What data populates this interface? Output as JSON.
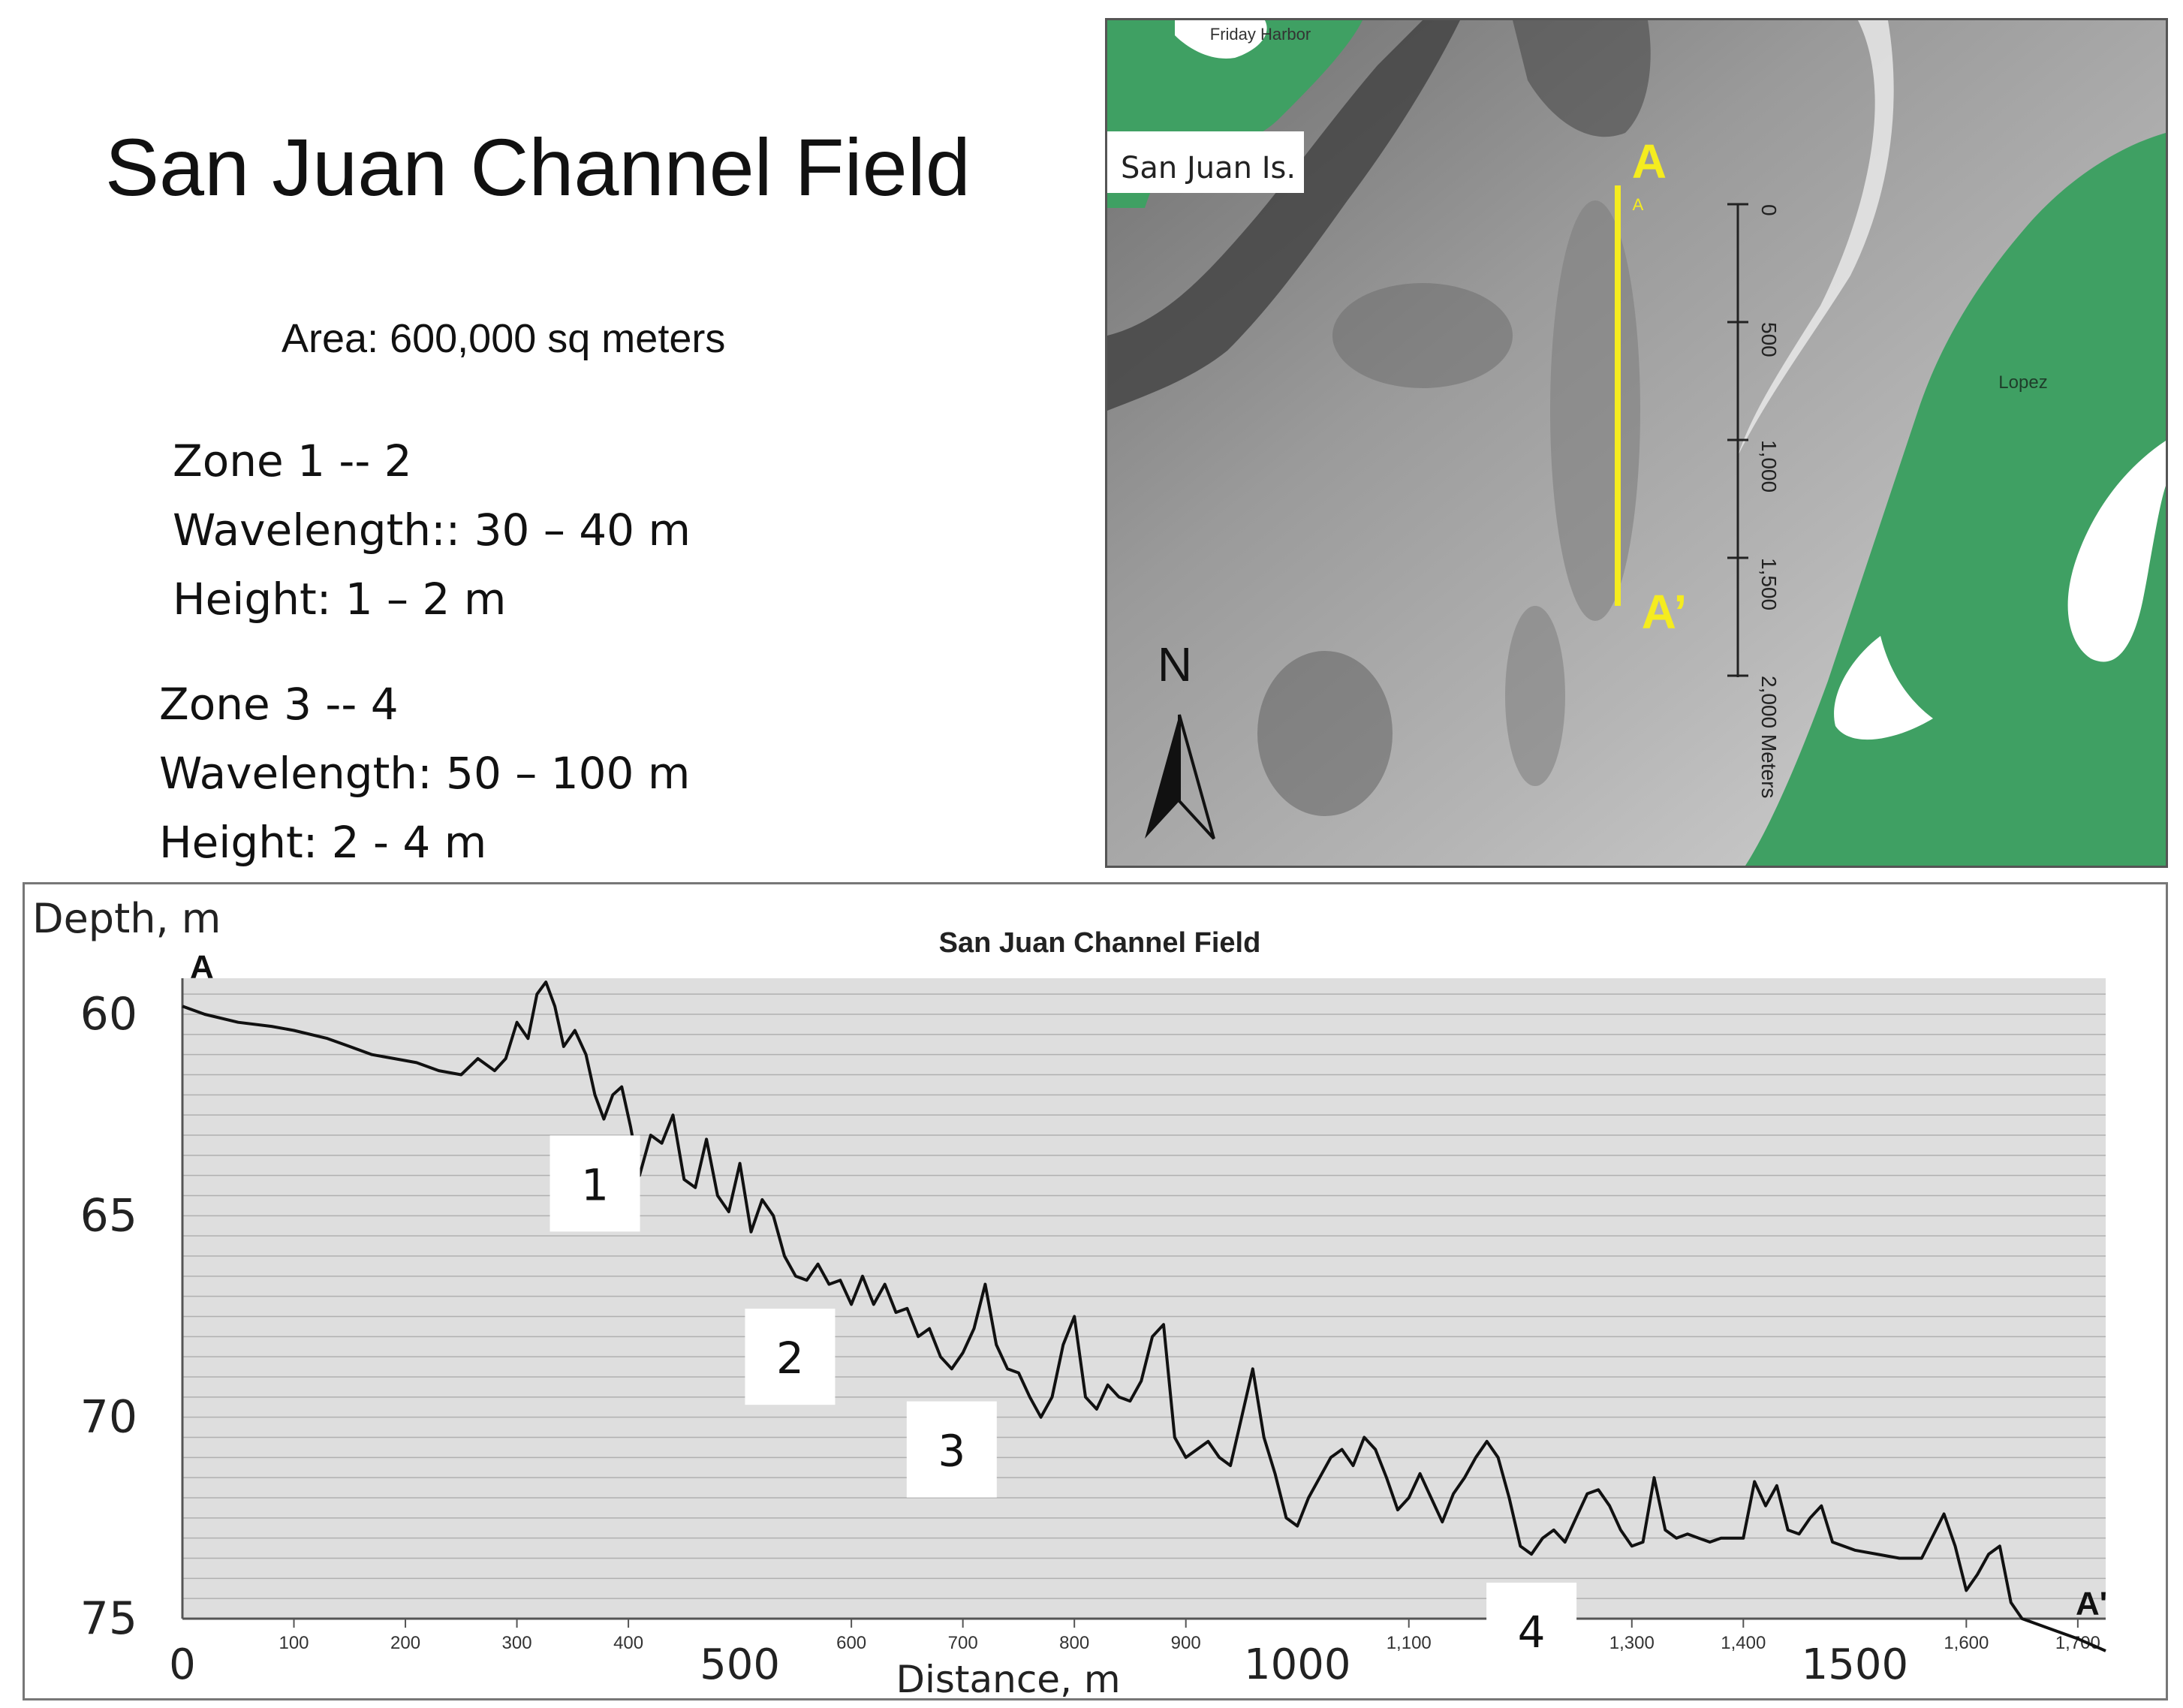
{
  "slide": {
    "title": "San Juan Channel Field",
    "area": "Area: 600,000 sq meters",
    "zone12": [
      "Zone 1 -- 2",
      "Wavelength:: 30 – 40 m",
      "Height: 1 – 2 m"
    ],
    "zone34": [
      "Zone 3 -- 4",
      "Wavelength: 50 – 100 m",
      "Height: 2 - 4 m"
    ]
  },
  "map": {
    "label_san_juan": "San Juan Is.",
    "label_friday": "Friday Harbor",
    "label_lopez": "Lopez",
    "label_a_top": "A",
    "label_a_small": "A",
    "label_a_prime": "A’",
    "north": "N",
    "scale_ticks": [
      "0",
      "500",
      "1,000",
      "1,500",
      "2,000 Meters"
    ],
    "colors": {
      "land": "#3fa063",
      "transect": "#f5ec1f"
    }
  },
  "chart_data": {
    "type": "line",
    "title": "San Juan Channel Field",
    "xlabel": "Distance, m",
    "ylabel": "Depth, m",
    "xlim": [
      0,
      1725
    ],
    "ylim": [
      60,
      75
    ],
    "y_inverted": true,
    "grid": true,
    "y_ticks": [
      60,
      65,
      70,
      75
    ],
    "x_ticks_small": [
      100,
      200,
      300,
      400,
      600,
      700,
      800,
      900,
      1100,
      1200,
      1300,
      1400,
      1600,
      1700
    ],
    "x_ticks_small_labels": [
      "100",
      "200",
      "300",
      "400",
      "600",
      "700",
      "800",
      "900",
      "1,100",
      "1,200",
      "1,300",
      "1,400",
      "1,600",
      "1,700"
    ],
    "x_ticks_large": [
      0,
      500,
      1000,
      1500
    ],
    "x_ticks_large_labels": [
      "0",
      "500",
      "1000",
      "1500"
    ],
    "endpoint_labels": [
      {
        "text": "A",
        "x": 0,
        "y": 59.1
      },
      {
        "text": "A'",
        "x": 1725,
        "y": 74.9
      }
    ],
    "zone_labels": [
      {
        "text": "1",
        "x": 370,
        "y": 64.2
      },
      {
        "text": "2",
        "x": 545,
        "y": 68.5
      },
      {
        "text": "3",
        "x": 690,
        "y": 70.8
      },
      {
        "text": "4",
        "x": 1210,
        "y": 75.3
      }
    ],
    "series": [
      {
        "x": [
          0,
          20,
          50,
          80,
          100,
          130,
          150,
          170,
          190,
          210,
          230,
          250,
          265,
          280,
          290,
          300,
          310,
          318,
          326,
          334,
          342,
          352,
          362,
          370,
          378,
          386,
          394,
          402,
          410,
          420,
          430,
          440,
          450,
          460,
          470,
          480,
          490,
          500,
          510,
          520,
          530,
          540,
          550,
          560,
          570,
          580,
          590,
          600,
          610,
          620,
          630,
          640,
          650,
          660,
          670,
          680,
          690,
          700,
          710,
          720,
          730,
          740,
          750,
          760,
          770,
          780,
          790,
          800,
          810,
          820,
          830,
          840,
          850,
          860,
          870,
          880,
          890,
          900,
          910,
          920,
          930,
          940,
          950,
          960,
          970,
          980,
          990,
          1000,
          1010,
          1020,
          1030,
          1040,
          1050,
          1060,
          1070,
          1080,
          1090,
          1100,
          1110,
          1120,
          1130,
          1140,
          1150,
          1160,
          1170,
          1180,
          1190,
          1200,
          1210,
          1220,
          1230,
          1240,
          1250,
          1260,
          1270,
          1280,
          1290,
          1300,
          1310,
          1320,
          1330,
          1340,
          1350,
          1360,
          1370,
          1380,
          1390,
          1400,
          1410,
          1420,
          1430,
          1440,
          1450,
          1460,
          1470,
          1480,
          1490,
          1500,
          1520,
          1540,
          1560,
          1580,
          1590,
          1600,
          1610,
          1620,
          1630,
          1640,
          1650,
          1660,
          1680,
          1700,
          1725
        ],
        "values": [
          59.8,
          60.0,
          60.2,
          60.3,
          60.4,
          60.6,
          60.8,
          61.0,
          61.1,
          61.2,
          61.4,
          61.5,
          61.1,
          61.4,
          61.1,
          60.2,
          60.6,
          59.5,
          59.2,
          59.8,
          60.8,
          60.4,
          61.0,
          62.0,
          62.6,
          62.0,
          61.8,
          62.8,
          64.0,
          63.0,
          63.2,
          62.5,
          64.1,
          64.3,
          63.1,
          64.5,
          64.9,
          63.7,
          65.4,
          64.6,
          65.0,
          66.0,
          66.5,
          66.6,
          66.2,
          66.7,
          66.6,
          67.2,
          66.5,
          67.2,
          66.7,
          67.4,
          67.3,
          68.0,
          67.8,
          68.5,
          68.8,
          68.4,
          67.8,
          66.7,
          68.2,
          68.8,
          68.9,
          69.5,
          70.0,
          69.5,
          68.2,
          67.5,
          69.5,
          69.8,
          69.2,
          69.5,
          69.6,
          69.1,
          68.0,
          67.7,
          70.5,
          71.0,
          70.8,
          70.6,
          71.0,
          71.2,
          70.0,
          68.8,
          70.5,
          71.4,
          72.5,
          72.7,
          72.0,
          71.5,
          71.0,
          70.8,
          71.2,
          70.5,
          70.8,
          71.5,
          72.3,
          72.0,
          71.4,
          72.0,
          72.6,
          71.9,
          71.5,
          71.0,
          70.6,
          71.0,
          72.0,
          73.2,
          73.4,
          73.0,
          72.8,
          73.1,
          72.5,
          71.9,
          71.8,
          72.2,
          72.8,
          73.2,
          73.1,
          71.5,
          72.8,
          73.0,
          72.9,
          73.0,
          73.1,
          73.0,
          73.0,
          73.0,
          71.6,
          72.2,
          71.7,
          72.8,
          72.9,
          72.5,
          72.2,
          73.1,
          73.2,
          73.3,
          73.4,
          73.5,
          73.5,
          72.4,
          73.2,
          74.3,
          73.9,
          73.4,
          73.2,
          74.6,
          75.0,
          75.1,
          75.3,
          75.5,
          75.8
        ]
      }
    ]
  }
}
